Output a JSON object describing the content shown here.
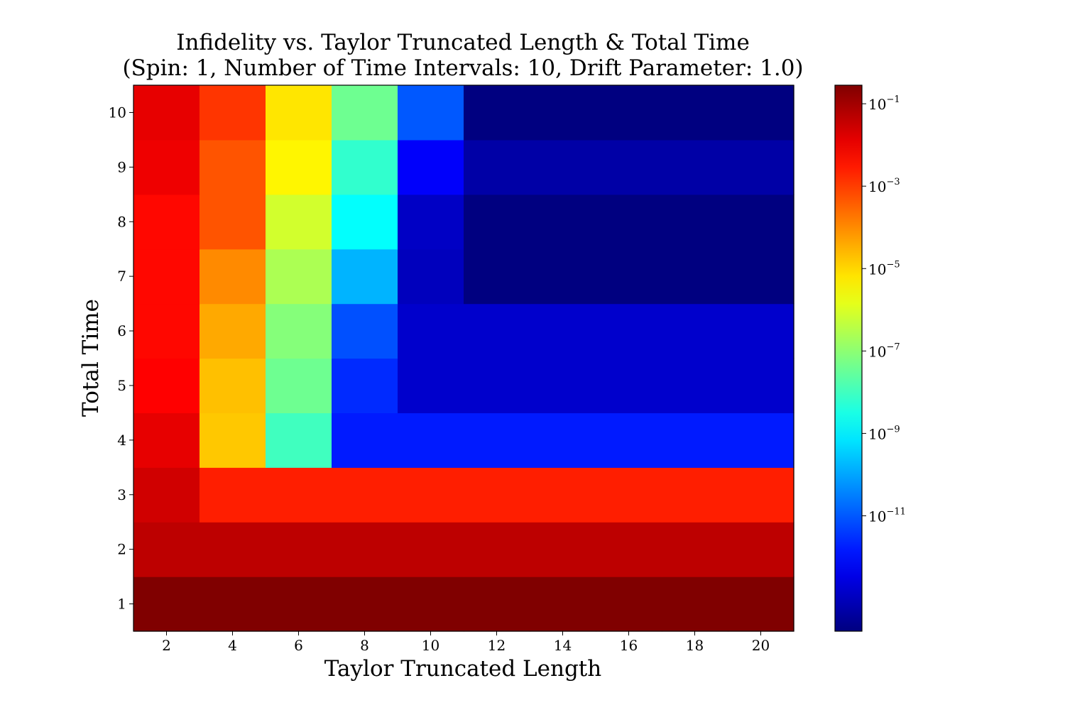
{
  "chart_data": {
    "type": "heatmap",
    "title_lines": [
      "Infidelity vs. Taylor Truncated Length & Total Time",
      "(Spin: 1, Number of Time Intervals: 10, Drift Parameter: 1.0)"
    ],
    "xlabel": "Taylor Truncated Length",
    "ylabel": "Total Time",
    "x_columns": [
      2,
      4,
      6,
      8,
      10,
      12,
      14,
      16,
      18,
      20
    ],
    "x_ticks": [
      2,
      4,
      6,
      8,
      10,
      12,
      14,
      16,
      18,
      20
    ],
    "x_tick_labels": [
      "2",
      "4",
      "6",
      "8",
      "10",
      "12",
      "14",
      "16",
      "18",
      "20"
    ],
    "xlim": [
      1,
      21
    ],
    "y_rows": [
      1,
      2,
      3,
      4,
      5,
      6,
      7,
      8,
      9,
      10
    ],
    "y_tick_labels": [
      "1",
      "2",
      "3",
      "4",
      "5",
      "6",
      "7",
      "8",
      "9",
      "10"
    ],
    "ylim": [
      0.5,
      10.5
    ],
    "color_scale": "log",
    "colormap": "jet",
    "color_range_log10": [
      -13.8,
      -0.55
    ],
    "colorbar": {
      "ticks_log10": [
        -1,
        -3,
        -5,
        -7,
        -9,
        -11
      ],
      "base_label": "10",
      "exponent_labels": [
        "−1",
        "−3",
        "−5",
        "−7",
        "−9",
        "−11"
      ]
    },
    "values_log10": [
      [
        -0.55,
        -0.55,
        -0.55,
        -0.55,
        -0.55,
        -0.55,
        -0.55,
        -0.55,
        -0.55,
        -0.55
      ],
      [
        -1.35,
        -1.35,
        -1.35,
        -1.35,
        -1.35,
        -1.35,
        -1.35,
        -1.35,
        -1.35,
        -1.35
      ],
      [
        -1.6,
        -2.6,
        -2.6,
        -2.6,
        -2.6,
        -2.6,
        -2.6,
        -2.6,
        -2.6,
        -2.6
      ],
      [
        -1.9,
        -4.8,
        -8.0,
        -11.8,
        -11.8,
        -11.8,
        -11.8,
        -11.8,
        -11.8,
        -11.8
      ],
      [
        -2.2,
        -4.7,
        -7.4,
        -11.6,
        -12.8,
        -12.8,
        -12.8,
        -12.8,
        -12.8,
        -12.8
      ],
      [
        -2.3,
        -4.4,
        -7.1,
        -11.1,
        -12.8,
        -12.8,
        -12.8,
        -12.8,
        -12.8,
        -12.8
      ],
      [
        -2.3,
        -4.0,
        -6.6,
        -9.8,
        -13.0,
        -13.8,
        -13.8,
        -13.8,
        -13.8,
        -13.8
      ],
      [
        -2.3,
        -3.3,
        -6.1,
        -8.8,
        -12.9,
        -13.8,
        -13.8,
        -13.8,
        -13.8,
        -13.8
      ],
      [
        -2.0,
        -3.3,
        -5.4,
        -8.2,
        -12.2,
        -13.3,
        -13.3,
        -13.3,
        -13.3,
        -13.3
      ],
      [
        -1.9,
        -2.9,
        -5.2,
        -7.4,
        -11.0,
        -13.8,
        -13.8,
        -13.8,
        -13.8,
        -13.8
      ]
    ]
  }
}
